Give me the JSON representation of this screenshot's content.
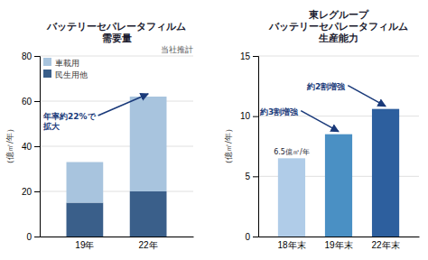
{
  "chart_data": [
    {
      "type": "bar",
      "stacked": true,
      "title": "バッテリーセパレータフィルム\n需要量",
      "y_label": "（億㎡/年）",
      "categories": [
        "19年",
        "22年"
      ],
      "series": [
        {
          "name": "民生用他",
          "color": "#3a5f8a",
          "values": [
            15,
            20
          ]
        },
        {
          "name": "車載用",
          "color": "#a8c4de",
          "values": [
            18,
            42
          ]
        }
      ],
      "ylim": [
        0,
        80
      ],
      "yticks": [
        0,
        20,
        40,
        60,
        80
      ],
      "grid": true,
      "legend": "upper left",
      "annotations": [
        {
          "text": "当社推計"
        },
        {
          "text": "年率約22%で\n拡大",
          "color": "#1a3a7a"
        }
      ]
    },
    {
      "type": "bar",
      "title": "東レグループ\nバッテリーセパレータフィルム\n生産能力",
      "y_label": "（億㎡/年）",
      "categories": [
        "18年末",
        "19年末",
        "22年末"
      ],
      "values": [
        6.5,
        8.5,
        10.6
      ],
      "colors": [
        "#b0cce8",
        "#4a90c4",
        "#2d5f9e"
      ],
      "ylim": [
        0,
        15
      ],
      "yticks": [
        0,
        5,
        10,
        15
      ],
      "grid": true,
      "annotations": [
        {
          "text": "6.5億㎡/年"
        },
        {
          "text": "約3割増強",
          "color": "#1a3a7a"
        },
        {
          "text": "約2割増強",
          "color": "#1a3a7a"
        }
      ]
    }
  ]
}
